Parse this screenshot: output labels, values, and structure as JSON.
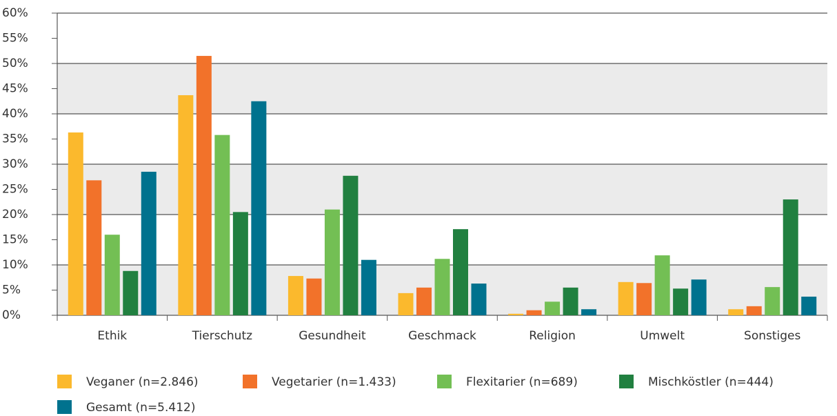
{
  "chart_data": {
    "type": "bar",
    "categories": [
      "Ethik",
      "Tierschutz",
      "Gesundheit",
      "Geschmack",
      "Religion",
      "Umwelt",
      "Sonstiges"
    ],
    "series": [
      {
        "name": "Veganer (n=2.846)",
        "color": "#fbb92d",
        "values": [
          36.3,
          43.7,
          7.8,
          4.4,
          0.3,
          6.6,
          1.2
        ]
      },
      {
        "name": "Vegetarier (n=1.433)",
        "color": "#f2722a",
        "values": [
          26.8,
          51.5,
          7.3,
          5.5,
          1.0,
          6.4,
          1.8
        ]
      },
      {
        "name": "Flexitarier (n=689)",
        "color": "#73bf54",
        "values": [
          16.0,
          35.8,
          21.0,
          11.2,
          2.7,
          11.9,
          5.6
        ]
      },
      {
        "name": "Mischköstler (n=444)",
        "color": "#218040",
        "values": [
          8.8,
          20.5,
          27.7,
          17.1,
          5.5,
          5.3,
          23.0
        ]
      },
      {
        "name": "Gesamt (n=5.412)",
        "color": "#00728e",
        "values": [
          28.5,
          42.5,
          11.0,
          6.3,
          1.2,
          7.1,
          3.7
        ]
      }
    ],
    "ylim": [
      0,
      60
    ],
    "yticks": [
      {
        "value": 0,
        "label": "0%"
      },
      {
        "value": 5,
        "label": "5%"
      },
      {
        "value": 10,
        "label": "10%"
      },
      {
        "value": 15,
        "label": "15%"
      },
      {
        "value": 20,
        "label": "20%"
      },
      {
        "value": 25,
        "label": "25%"
      },
      {
        "value": 30,
        "label": "30%"
      },
      {
        "value": 35,
        "label": "35%"
      },
      {
        "value": 40,
        "label": "40%"
      },
      {
        "value": 45,
        "label": "45%"
      },
      {
        "value": 50,
        "label": "50%"
      },
      {
        "value": 55,
        "label": "55%"
      },
      {
        "value": 60,
        "label": "60%"
      }
    ],
    "grid": true,
    "legend": "bottom"
  }
}
